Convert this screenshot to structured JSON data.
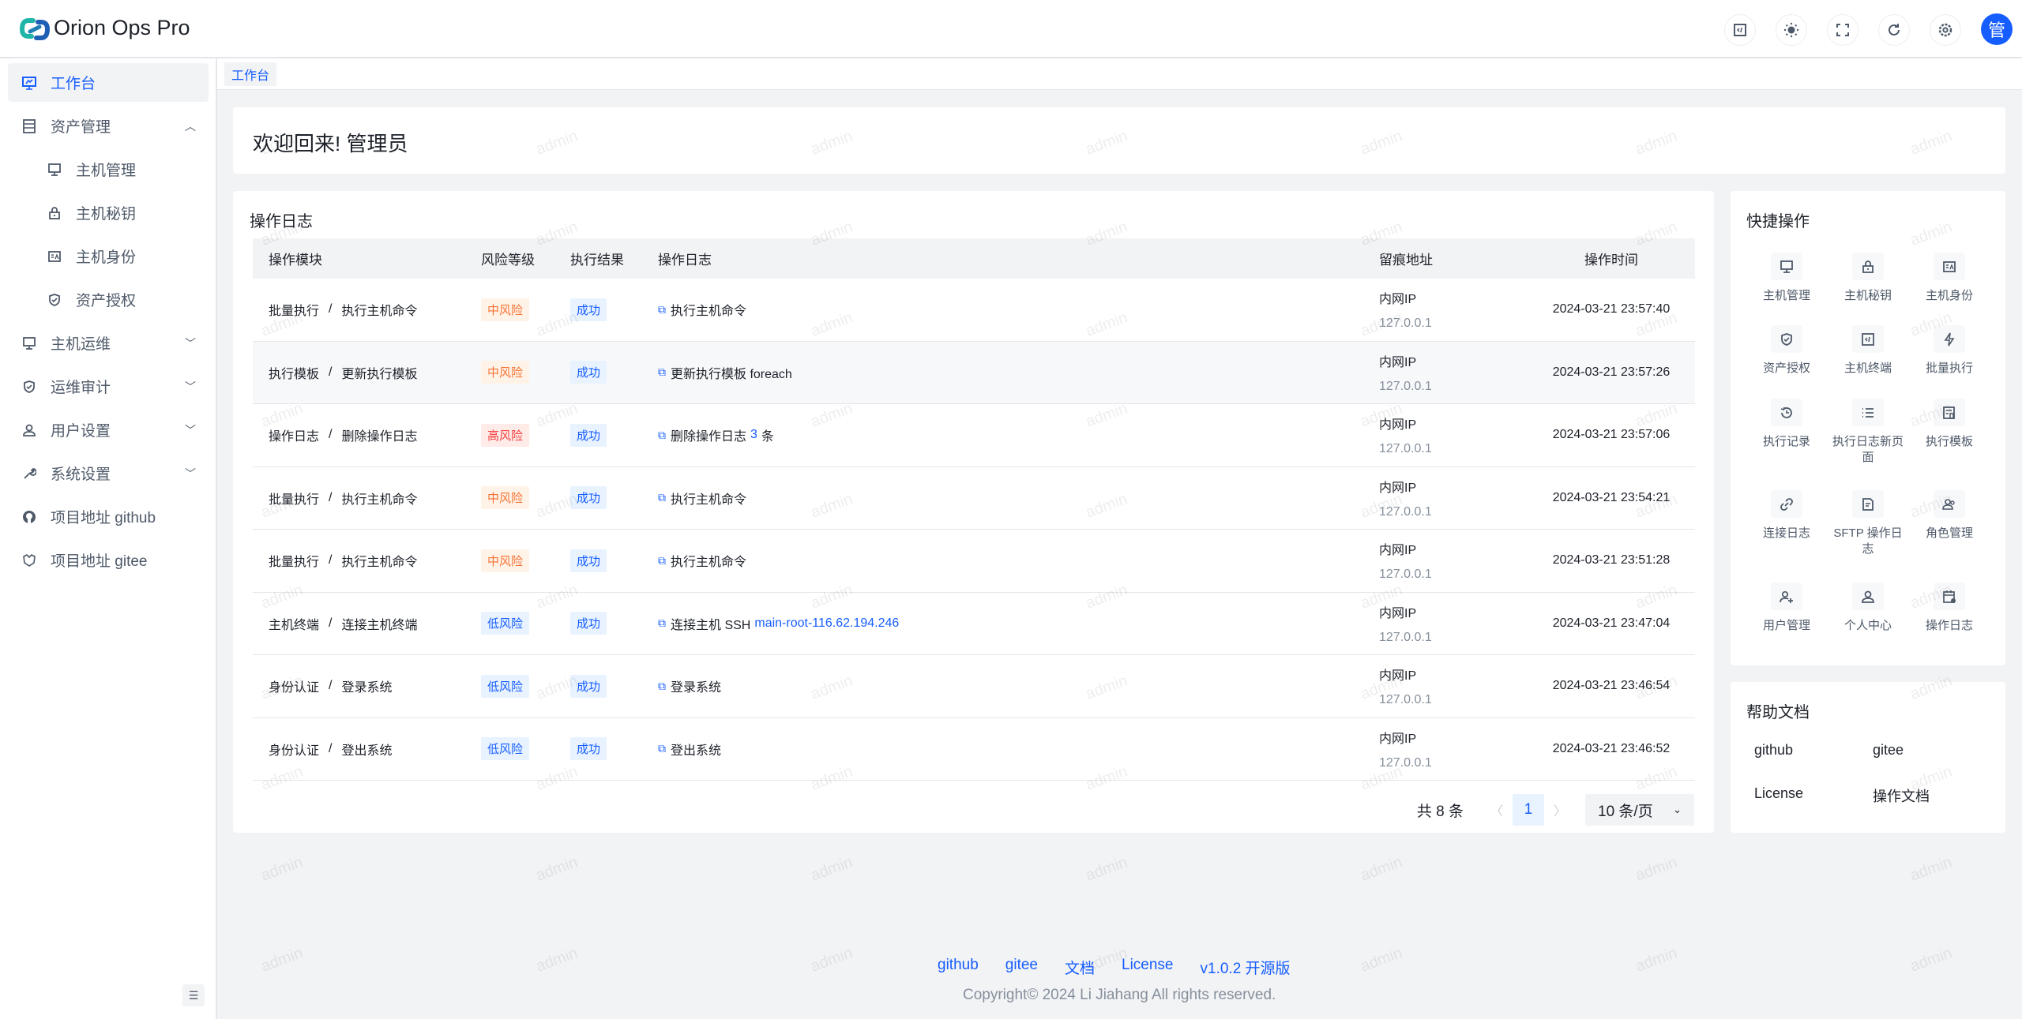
{
  "app": {
    "title": "Orion Ops Pro",
    "avatar_text": "管",
    "accent": "#165dff"
  },
  "header": {
    "icons": [
      "code-terminal-icon",
      "theme-sun-icon",
      "fullscreen-icon",
      "refresh-icon",
      "settings-gear-icon"
    ]
  },
  "sidebar": {
    "items": [
      {
        "label": "工作台",
        "icon": "dashboard-icon",
        "active": true
      },
      {
        "label": "资产管理",
        "icon": "server-icon",
        "chevron": "up"
      },
      {
        "label": "主机管理",
        "icon": "monitor-icon",
        "sub": true
      },
      {
        "label": "主机秘钥",
        "icon": "lock-icon",
        "sub": true
      },
      {
        "label": "主机身份",
        "icon": "id-card-icon",
        "sub": true
      },
      {
        "label": "资产授权",
        "icon": "shield-check-icon",
        "sub": true
      },
      {
        "label": "主机运维",
        "icon": "desktop-icon",
        "chevron": "down"
      },
      {
        "label": "运维审计",
        "icon": "shield-icon",
        "chevron": "down"
      },
      {
        "label": "用户设置",
        "icon": "user-icon",
        "chevron": "down"
      },
      {
        "label": "系统设置",
        "icon": "wrench-icon",
        "chevron": "down"
      },
      {
        "label": "项目地址 github",
        "icon": "github-icon"
      },
      {
        "label": "项目地址 gitee",
        "icon": "gitee-icon"
      }
    ]
  },
  "tabs": [
    {
      "label": "工作台"
    }
  ],
  "welcome": "欢迎回来! 管理员",
  "oplog": {
    "title": "操作日志",
    "columns": [
      "操作模块",
      "风险等级",
      "执行结果",
      "操作日志",
      "留痕地址",
      "操作时间"
    ],
    "rows": [
      {
        "module": "批量执行",
        "action": "执行主机命令",
        "risk": "中风险",
        "riskLevel": "mid",
        "result": "成功",
        "log": "执行主机命令",
        "highlight": "",
        "suffix": "",
        "ipLabel": "内网IP",
        "ip": "127.0.0.1",
        "time": "2024-03-21 23:57:40"
      },
      {
        "module": "执行模板",
        "action": "更新执行模板",
        "risk": "中风险",
        "riskLevel": "mid",
        "result": "成功",
        "log": "更新执行模板 foreach",
        "highlight": "",
        "suffix": "",
        "ipLabel": "内网IP",
        "ip": "127.0.0.1",
        "time": "2024-03-21 23:57:26"
      },
      {
        "module": "操作日志",
        "action": "删除操作日志",
        "risk": "高风险",
        "riskLevel": "high",
        "result": "成功",
        "log": "删除操作日志",
        "highlight": "3",
        "suffix": "条",
        "ipLabel": "内网IP",
        "ip": "127.0.0.1",
        "time": "2024-03-21 23:57:06"
      },
      {
        "module": "批量执行",
        "action": "执行主机命令",
        "risk": "中风险",
        "riskLevel": "mid",
        "result": "成功",
        "log": "执行主机命令",
        "highlight": "",
        "suffix": "",
        "ipLabel": "内网IP",
        "ip": "127.0.0.1",
        "time": "2024-03-21 23:54:21"
      },
      {
        "module": "批量执行",
        "action": "执行主机命令",
        "risk": "中风险",
        "riskLevel": "mid",
        "result": "成功",
        "log": "执行主机命令",
        "highlight": "",
        "suffix": "",
        "ipLabel": "内网IP",
        "ip": "127.0.0.1",
        "time": "2024-03-21 23:51:28"
      },
      {
        "module": "主机终端",
        "action": "连接主机终端",
        "risk": "低风险",
        "riskLevel": "low",
        "result": "成功",
        "log": "连接主机 SSH",
        "highlight": "main-root-116.62.194.246",
        "suffix": "",
        "ipLabel": "内网IP",
        "ip": "127.0.0.1",
        "time": "2024-03-21 23:47:04"
      },
      {
        "module": "身份认证",
        "action": "登录系统",
        "risk": "低风险",
        "riskLevel": "low",
        "result": "成功",
        "log": "登录系统",
        "highlight": "",
        "suffix": "",
        "ipLabel": "内网IP",
        "ip": "127.0.0.1",
        "time": "2024-03-21 23:46:54"
      },
      {
        "module": "身份认证",
        "action": "登出系统",
        "risk": "低风险",
        "riskLevel": "low",
        "result": "成功",
        "log": "登出系统",
        "highlight": "",
        "suffix": "",
        "ipLabel": "内网IP",
        "ip": "127.0.0.1",
        "time": "2024-03-21 23:46:52"
      }
    ],
    "pagination": {
      "total": "共 8 条",
      "current": "1",
      "page_size": "10 条/页"
    }
  },
  "quick": {
    "title": "快捷操作",
    "items": [
      {
        "label": "主机管理",
        "icon": "monitor-icon"
      },
      {
        "label": "主机秘钥",
        "icon": "lock-icon"
      },
      {
        "label": "主机身份",
        "icon": "id-card-icon"
      },
      {
        "label": "资产授权",
        "icon": "shield-check-icon"
      },
      {
        "label": "主机终端",
        "icon": "code-terminal-icon"
      },
      {
        "label": "批量执行",
        "icon": "lightning-icon"
      },
      {
        "label": "执行记录",
        "icon": "history-icon"
      },
      {
        "label": "执行日志新页面",
        "icon": "list-icon"
      },
      {
        "label": "执行模板",
        "icon": "template-icon"
      },
      {
        "label": "连接日志",
        "icon": "link-icon"
      },
      {
        "label": "SFTP 操作日志",
        "icon": "file-icon"
      },
      {
        "label": "角色管理",
        "icon": "users-icon"
      },
      {
        "label": "用户管理",
        "icon": "user-add-icon"
      },
      {
        "label": "个人中心",
        "icon": "user-icon"
      },
      {
        "label": "操作日志",
        "icon": "calendar-log-icon"
      }
    ]
  },
  "help": {
    "title": "帮助文档",
    "links": [
      "github",
      "gitee",
      "License",
      "操作文档"
    ]
  },
  "footer": {
    "links": [
      "github",
      "gitee",
      "文档",
      "License",
      "v1.0.2 开源版"
    ],
    "copyright": "Copyright© 2024 Li Jiahang All rights reserved."
  },
  "watermark": "admin"
}
